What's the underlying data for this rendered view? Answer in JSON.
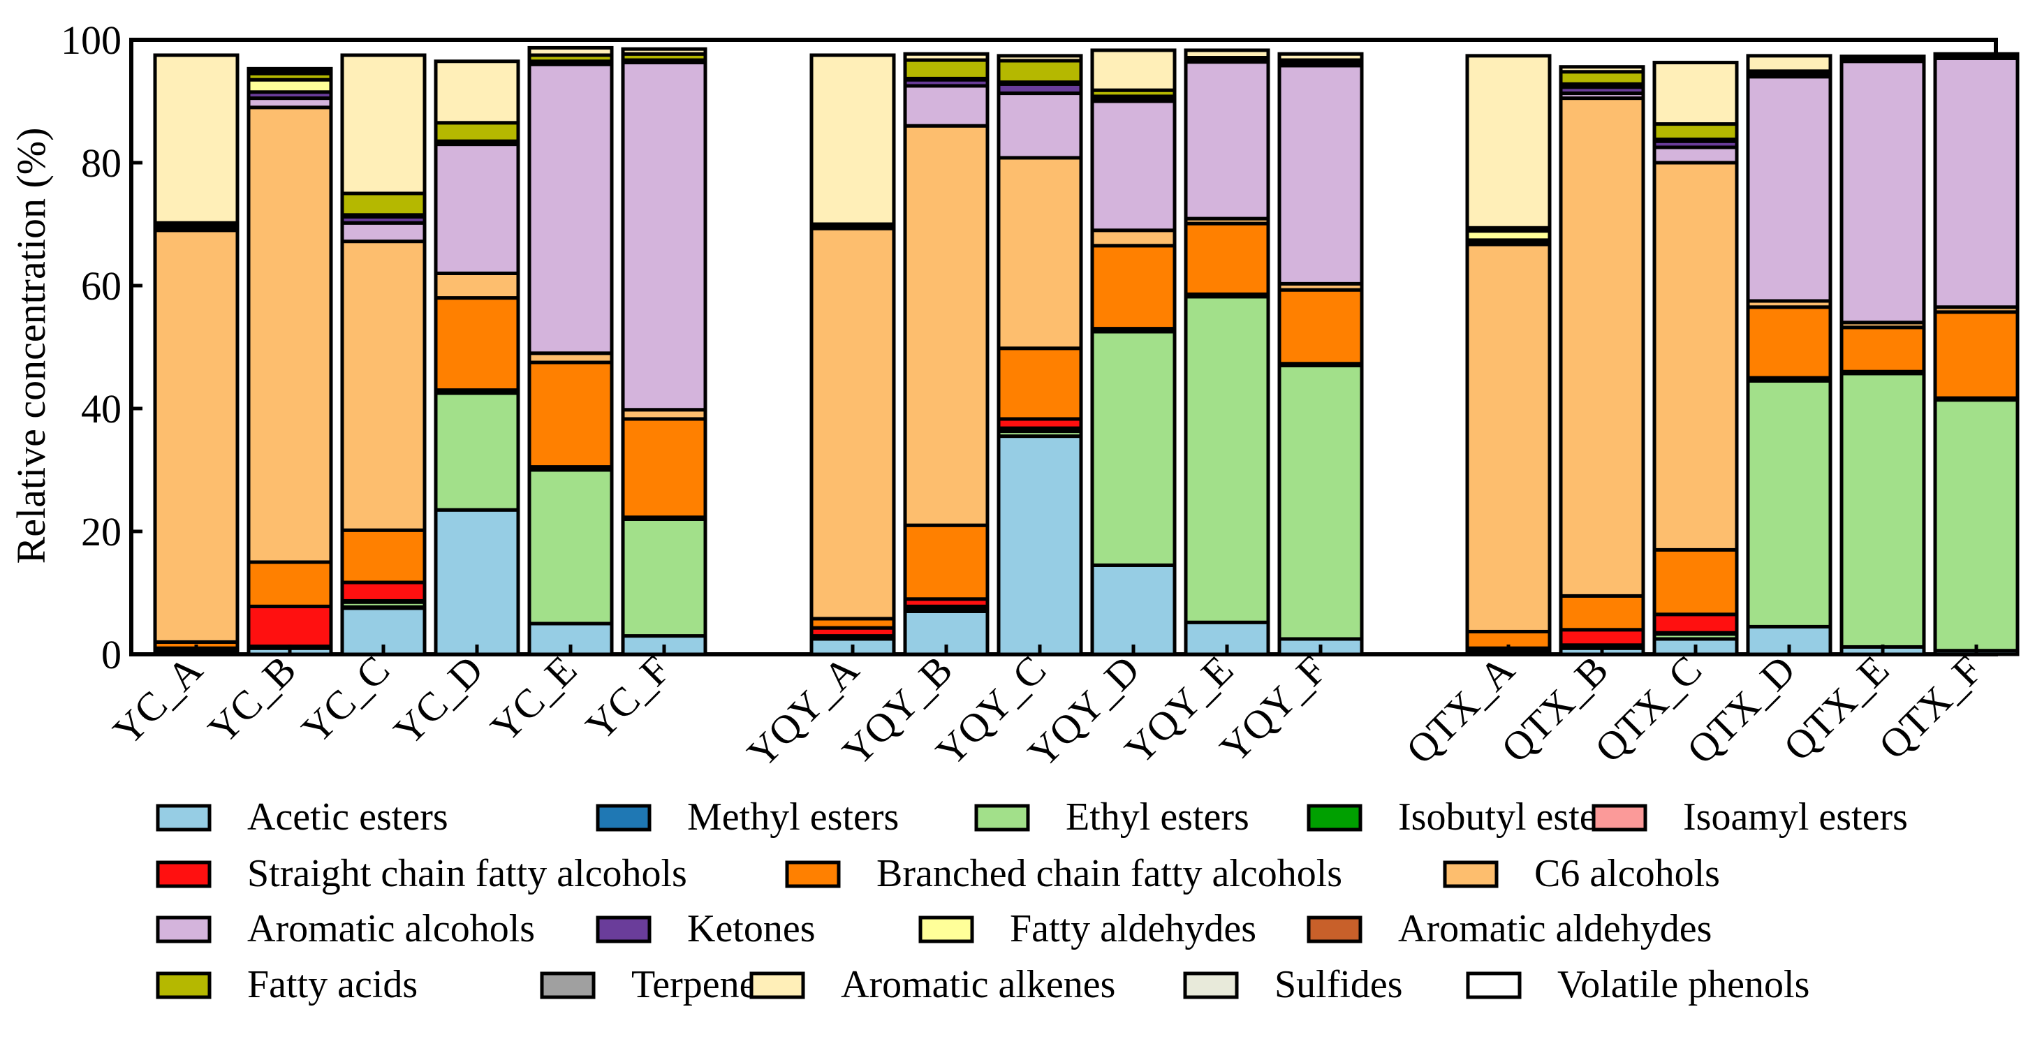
{
  "chart_data": {
    "type": "bar",
    "stacked": true,
    "ylabel": "Relative concentration (%)",
    "ylim": [
      0,
      100
    ],
    "yticks": [
      0,
      20,
      40,
      60,
      80,
      100
    ],
    "grid": false,
    "legend_position": "bottom",
    "groups": [
      [
        "YC_A",
        "YC_B",
        "YC_C",
        "YC_D",
        "YC_E",
        "YC_F"
      ],
      [
        "YQY_A",
        "YQY_B",
        "YQY_C",
        "YQY_D",
        "YQY_E",
        "YQY_F"
      ],
      [
        "QTX_A",
        "QTX_B",
        "QTX_C",
        "QTX_D",
        "QTX_E",
        "QTX_F"
      ]
    ],
    "categories": [
      "YC_A",
      "YC_B",
      "YC_C",
      "YC_D",
      "YC_E",
      "YC_F",
      "YQY_A",
      "YQY_B",
      "YQY_C",
      "YQY_D",
      "YQY_E",
      "YQY_F",
      "QTX_A",
      "QTX_B",
      "QTX_C",
      "QTX_D",
      "QTX_E",
      "QTX_F"
    ],
    "series": [
      {
        "name": "Acetic esters",
        "color": "#96cde4",
        "values": [
          0.3,
          1.0,
          7.5,
          23.5,
          5.0,
          3.0,
          2.5,
          7.0,
          35.5,
          14.5,
          5.2,
          2.5,
          0.3,
          1.0,
          2.5,
          4.5,
          1.2,
          0.6
        ]
      },
      {
        "name": "Methyl esters",
        "color": "#1f78b4",
        "values": [
          0.0,
          0.0,
          0.2,
          0.0,
          0.0,
          0.0,
          0.0,
          0.0,
          0.0,
          0.0,
          0.0,
          0.0,
          0.0,
          0.0,
          0.0,
          0.0,
          0.0,
          0.0
        ]
      },
      {
        "name": "Ethyl esters",
        "color": "#a2e08a",
        "values": [
          0.2,
          0.3,
          0.8,
          19.0,
          25.0,
          19.0,
          0.5,
          0.5,
          0.8,
          38.0,
          53.0,
          44.5,
          0.2,
          0.2,
          0.8,
          40.0,
          44.5,
          40.8
        ]
      },
      {
        "name": "Isobutyl esters",
        "color": "#00a000",
        "values": [
          0.0,
          0.0,
          0.0,
          0.0,
          0.2,
          0.0,
          0.0,
          0.0,
          0.0,
          0.2,
          0.2,
          0.0,
          0.0,
          0.0,
          0.0,
          0.2,
          0.0,
          0.0
        ]
      },
      {
        "name": "Isoamyl esters",
        "color": "#fb9a99",
        "values": [
          0.0,
          0.0,
          0.2,
          0.0,
          0.0,
          0.0,
          0.0,
          0.3,
          0.5,
          0.0,
          0.0,
          0.0,
          0.0,
          0.3,
          0.2,
          0.0,
          0.0,
          0.0
        ]
      },
      {
        "name": "Straight chain fatty alcohols",
        "color": "#ff1010",
        "values": [
          0.5,
          6.5,
          3.0,
          0.5,
          0.3,
          0.3,
          1.3,
          1.2,
          1.5,
          0.3,
          0.2,
          0.3,
          0.5,
          2.5,
          3.0,
          0.3,
          0.3,
          0.3
        ]
      },
      {
        "name": "Branched chain fatty alcohols",
        "color": "#ff8000",
        "values": [
          1.0,
          7.2,
          8.5,
          15.0,
          17.0,
          16.0,
          1.5,
          12.0,
          11.5,
          13.5,
          11.5,
          12.0,
          2.7,
          5.5,
          10.5,
          11.5,
          7.2,
          14.0
        ]
      },
      {
        "name": "C6 alcohols",
        "color": "#fdbe6e",
        "values": [
          67.0,
          74.0,
          47.0,
          4.0,
          1.5,
          1.5,
          63.5,
          65.0,
          31.0,
          2.5,
          0.8,
          1.0,
          63.0,
          81.0,
          63.0,
          1.0,
          0.8,
          0.8
        ]
      },
      {
        "name": "Aromatic alcohols",
        "color": "#d4b4dc",
        "values": [
          0.5,
          1.5,
          3.0,
          21.0,
          47.0,
          56.5,
          0.5,
          6.5,
          10.5,
          21.0,
          25.5,
          35.5,
          0.5,
          0.8,
          2.5,
          36.5,
          42.5,
          40.5
        ]
      },
      {
        "name": "Ketones",
        "color": "#6a3d9a",
        "values": [
          0.2,
          1.0,
          1.0,
          0.5,
          0.3,
          0.2,
          0.2,
          1.0,
          1.5,
          0.3,
          0.2,
          0.2,
          0.2,
          1.0,
          1.0,
          0.2,
          0.2,
          0.2
        ]
      },
      {
        "name": "Fatty aldehydes",
        "color": "#ffff99",
        "values": [
          0.0,
          2.0,
          0.3,
          0.0,
          0.2,
          0.2,
          0.0,
          0.2,
          0.3,
          0.5,
          0.2,
          0.2,
          1.5,
          0.5,
          0.3,
          0.2,
          0.0,
          0.0
        ]
      },
      {
        "name": "Aromatic aldehydes",
        "color": "#c8602a",
        "values": [
          0.0,
          0.0,
          0.0,
          0.0,
          0.0,
          0.0,
          0.0,
          0.0,
          0.0,
          0.0,
          0.0,
          0.0,
          0.0,
          0.0,
          0.0,
          0.0,
          0.0,
          0.0
        ]
      },
      {
        "name": "Fatty acids",
        "color": "#b5b800",
        "values": [
          0.5,
          1.0,
          3.5,
          3.0,
          1.0,
          1.0,
          0.0,
          3.0,
          3.5,
          1.0,
          0.3,
          0.5,
          0.5,
          2.0,
          2.5,
          0.5,
          0.3,
          0.2
        ]
      },
      {
        "name": "Terpenes",
        "color": "#a0a0a0",
        "values": [
          0.0,
          0.3,
          0.0,
          0.0,
          0.0,
          0.0,
          0.0,
          0.0,
          0.0,
          0.0,
          0.0,
          0.0,
          0.0,
          0.0,
          0.0,
          0.0,
          0.0,
          0.0
        ]
      },
      {
        "name": "Aromatic alkenes",
        "color": "#ffefb8",
        "values": [
          27.3,
          0.5,
          22.5,
          10.0,
          1.2,
          0.8,
          27.5,
          1.0,
          0.8,
          6.5,
          1.2,
          1.0,
          28.0,
          0.8,
          10.0,
          2.5,
          0.3,
          0.3
        ]
      },
      {
        "name": "Sulfides",
        "color": "#e8eada",
        "values": [
          0.0,
          0.0,
          0.0,
          0.0,
          0.0,
          0.0,
          0.0,
          0.0,
          0.0,
          0.0,
          0.0,
          0.0,
          0.0,
          0.0,
          0.0,
          0.0,
          0.0,
          0.0
        ]
      },
      {
        "name": "Volatile phenols",
        "color": "#ffffff",
        "values": [
          0.0,
          0.0,
          0.0,
          0.0,
          0.0,
          0.0,
          0.0,
          0.0,
          0.0,
          0.0,
          0.0,
          0.0,
          0.0,
          0.0,
          0.0,
          0.0,
          0.0,
          0.0
        ]
      }
    ]
  }
}
